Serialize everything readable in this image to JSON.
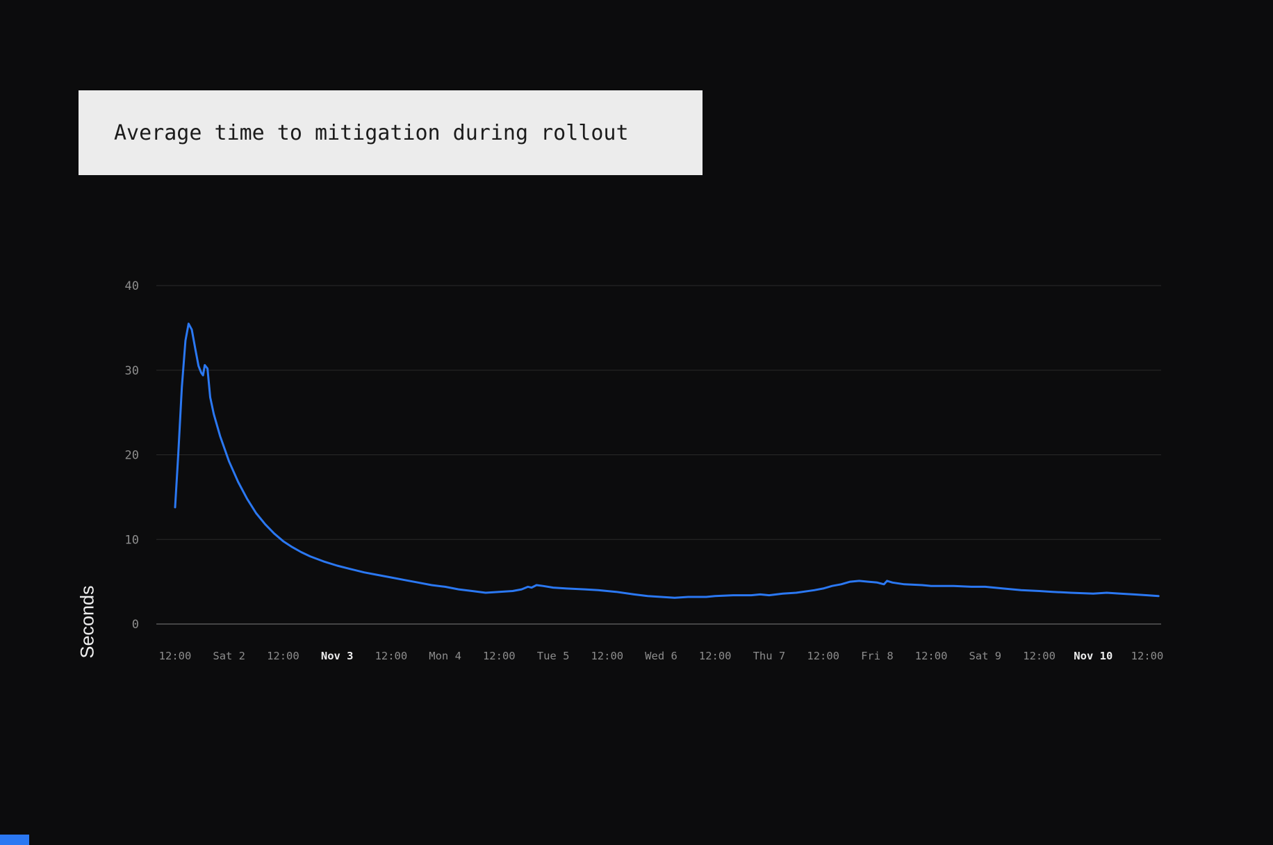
{
  "page": {
    "background": "#0c0c0d"
  },
  "panel": {
    "title": "Average time to mitigation during rollout",
    "title_box_bg": "#ececec",
    "title_text_color": "#1b1b1b"
  },
  "decor": {
    "bottom_left_accent_color": "#2b78f2"
  },
  "chart_data": {
    "type": "line",
    "title": "Average time to mitigation during rollout",
    "xlabel": "",
    "ylabel": "Seconds",
    "ylim": [
      0,
      40
    ],
    "yticks": [
      0,
      10,
      20,
      30,
      40
    ],
    "grid": true,
    "legend_position": "none",
    "axis_text_color": "#8d8d8d",
    "axis_text_emph_color": "#ededed",
    "grid_color": "#2a2a2a",
    "baseline_color": "#5a5a5a",
    "x_unit": "hours since Nov 1 12:00, 12h per tick",
    "x_range_hours": [
      0,
      218.5
    ],
    "xticks": [
      {
        "hour": 0,
        "label": "12:00",
        "emphasis": false
      },
      {
        "hour": 12,
        "label": "Sat 2",
        "emphasis": false
      },
      {
        "hour": 24,
        "label": "12:00",
        "emphasis": false
      },
      {
        "hour": 36,
        "label": "Nov 3",
        "emphasis": true
      },
      {
        "hour": 48,
        "label": "12:00",
        "emphasis": false
      },
      {
        "hour": 60,
        "label": "Mon 4",
        "emphasis": false
      },
      {
        "hour": 72,
        "label": "12:00",
        "emphasis": false
      },
      {
        "hour": 84,
        "label": "Tue 5",
        "emphasis": false
      },
      {
        "hour": 96,
        "label": "12:00",
        "emphasis": false
      },
      {
        "hour": 108,
        "label": "Wed 6",
        "emphasis": false
      },
      {
        "hour": 120,
        "label": "12:00",
        "emphasis": false
      },
      {
        "hour": 132,
        "label": "Thu 7",
        "emphasis": false
      },
      {
        "hour": 144,
        "label": "12:00",
        "emphasis": false
      },
      {
        "hour": 156,
        "label": "Fri 8",
        "emphasis": false
      },
      {
        "hour": 168,
        "label": "12:00",
        "emphasis": false
      },
      {
        "hour": 180,
        "label": "Sat 9",
        "emphasis": false
      },
      {
        "hour": 192,
        "label": "12:00",
        "emphasis": false
      },
      {
        "hour": 204,
        "label": "Nov 10",
        "emphasis": true
      },
      {
        "hour": 216,
        "label": "12:00",
        "emphasis": false
      }
    ],
    "series": [
      {
        "name": "Average time to mitigation",
        "unit": "seconds",
        "color": "#2b78f2",
        "points": [
          [
            0,
            13.8
          ],
          [
            0.7,
            20.0
          ],
          [
            1.5,
            28.0
          ],
          [
            2.3,
            33.5
          ],
          [
            3,
            35.5
          ],
          [
            3.7,
            34.8
          ],
          [
            4.5,
            32.5
          ],
          [
            5.2,
            30.5
          ],
          [
            5.8,
            29.7
          ],
          [
            6.2,
            29.4
          ],
          [
            6.6,
            30.6
          ],
          [
            7.2,
            30.2
          ],
          [
            7.8,
            26.8
          ],
          [
            8.6,
            24.8
          ],
          [
            10,
            22.2
          ],
          [
            12,
            19.2
          ],
          [
            14,
            16.8
          ],
          [
            16,
            14.8
          ],
          [
            18,
            13.1
          ],
          [
            20,
            11.8
          ],
          [
            22,
            10.7
          ],
          [
            24,
            9.8
          ],
          [
            26,
            9.1
          ],
          [
            28,
            8.5
          ],
          [
            30,
            8.0
          ],
          [
            33,
            7.4
          ],
          [
            36,
            6.9
          ],
          [
            39,
            6.5
          ],
          [
            42,
            6.1
          ],
          [
            45,
            5.8
          ],
          [
            48,
            5.5
          ],
          [
            51,
            5.2
          ],
          [
            54,
            4.9
          ],
          [
            57,
            4.6
          ],
          [
            60,
            4.4
          ],
          [
            63,
            4.1
          ],
          [
            66,
            3.9
          ],
          [
            69,
            3.7
          ],
          [
            72,
            3.8
          ],
          [
            75,
            3.9
          ],
          [
            77,
            4.1
          ],
          [
            78.4,
            4.4
          ],
          [
            79.2,
            4.3
          ],
          [
            80.3,
            4.6
          ],
          [
            81.7,
            4.5
          ],
          [
            84,
            4.3
          ],
          [
            87,
            4.2
          ],
          [
            91,
            4.1
          ],
          [
            94,
            4.0
          ],
          [
            98,
            3.8
          ],
          [
            102,
            3.5
          ],
          [
            105,
            3.3
          ],
          [
            108,
            3.2
          ],
          [
            111,
            3.1
          ],
          [
            114,
            3.2
          ],
          [
            118,
            3.2
          ],
          [
            120,
            3.3
          ],
          [
            124,
            3.4
          ],
          [
            128,
            3.4
          ],
          [
            130,
            3.5
          ],
          [
            132,
            3.4
          ],
          [
            135,
            3.6
          ],
          [
            138,
            3.7
          ],
          [
            142,
            4.0
          ],
          [
            144,
            4.2
          ],
          [
            146,
            4.5
          ],
          [
            148,
            4.7
          ],
          [
            150,
            5.0
          ],
          [
            152,
            5.1
          ],
          [
            154,
            5.0
          ],
          [
            156,
            4.9
          ],
          [
            157.5,
            4.7
          ],
          [
            158.2,
            5.1
          ],
          [
            159.4,
            4.9
          ],
          [
            162,
            4.7
          ],
          [
            166,
            4.6
          ],
          [
            168,
            4.5
          ],
          [
            173,
            4.5
          ],
          [
            177,
            4.4
          ],
          [
            180,
            4.4
          ],
          [
            184,
            4.2
          ],
          [
            188,
            4.0
          ],
          [
            192,
            3.9
          ],
          [
            195,
            3.8
          ],
          [
            199,
            3.7
          ],
          [
            204,
            3.6
          ],
          [
            207,
            3.7
          ],
          [
            210,
            3.6
          ],
          [
            213,
            3.5
          ],
          [
            216,
            3.4
          ],
          [
            218.5,
            3.3
          ]
        ]
      }
    ]
  }
}
